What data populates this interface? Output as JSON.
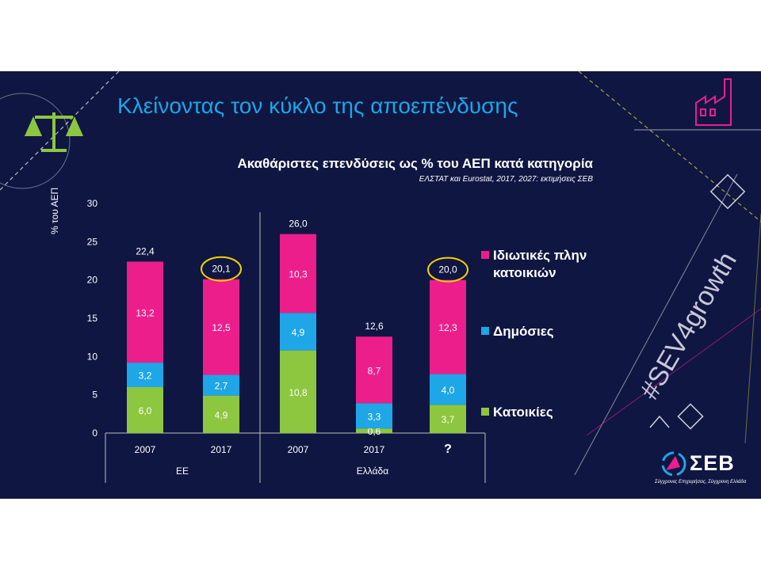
{
  "slide": {
    "title": "Κλείνοντας τον κύκλο της αποεπένδυσης",
    "subtitle": "Ακαθάριστες επενδύσεις ως % του ΑΕΠ κατά κατηγορία",
    "source": "ΕΛΣΤΑΤ και Eurostat, 2017, 2027: εκτιμήσεις ΣΕΒ",
    "hashtag": "#SEV4growth",
    "logo_text": "ΣΕΒ",
    "logo_tagline": "Σύγχρονες Επιχειρήσεις, Σύγχρονη Ελλάδα",
    "icons": [
      "scales-icon",
      "factory-icon"
    ]
  },
  "chart_data": {
    "type": "bar",
    "stacked": true,
    "title": "Ακαθάριστες επενδύσεις ως % του ΑΕΠ κατά κατηγορία",
    "ylabel": "% του ΑΕΠ",
    "ylim": [
      0,
      30
    ],
    "yticks": [
      0,
      5,
      10,
      15,
      20,
      25,
      30
    ],
    "categories": [
      "2007",
      "2017",
      "2007",
      "2017",
      "?"
    ],
    "groups": [
      {
        "label": "ΕΕ",
        "categories": [
          "2007",
          "2017"
        ]
      },
      {
        "label": "Ελλάδα",
        "categories": [
          "2007",
          "2017",
          "?"
        ]
      }
    ],
    "series": [
      {
        "name": "Κατοικίες",
        "color": "#8dc63f",
        "values": [
          6.0,
          4.9,
          10.8,
          0.6,
          3.7
        ],
        "labels": [
          "6,0",
          "4,9",
          "10,8",
          "0,6",
          "3,7"
        ]
      },
      {
        "name": "Δημόσιες",
        "color": "#1ea6e6",
        "values": [
          3.2,
          2.7,
          4.9,
          3.3,
          4.0
        ],
        "labels": [
          "3,2",
          "2,7",
          "4,9",
          "3,3",
          "4,0"
        ]
      },
      {
        "name": "Ιδιωτικές πλην κατοικιών",
        "color": "#ec1e8c",
        "values": [
          13.2,
          12.5,
          10.3,
          8.7,
          12.3
        ],
        "labels": [
          "13,2",
          "12,5",
          "10,3",
          "8,7",
          "12,3"
        ]
      }
    ],
    "totals": [
      22.4,
      20.1,
      26.0,
      12.6,
      20.0
    ],
    "total_labels": [
      "22,4",
      "20,1",
      "26,0",
      "12,6",
      "20,0"
    ],
    "highlighted_totals": [
      1,
      4
    ],
    "highlight_color": "#f5d000",
    "legend": [
      {
        "label_lines": [
          "Ιδιωτικές πλην",
          "κατοικιών"
        ],
        "color": "#ec1e8c"
      },
      {
        "label_lines": [
          "Δημόσιες"
        ],
        "color": "#1ea6e6"
      },
      {
        "label_lines": [
          "Κατοικίες"
        ],
        "color": "#8dc63f"
      }
    ],
    "legend_position": "right",
    "grid": false
  }
}
